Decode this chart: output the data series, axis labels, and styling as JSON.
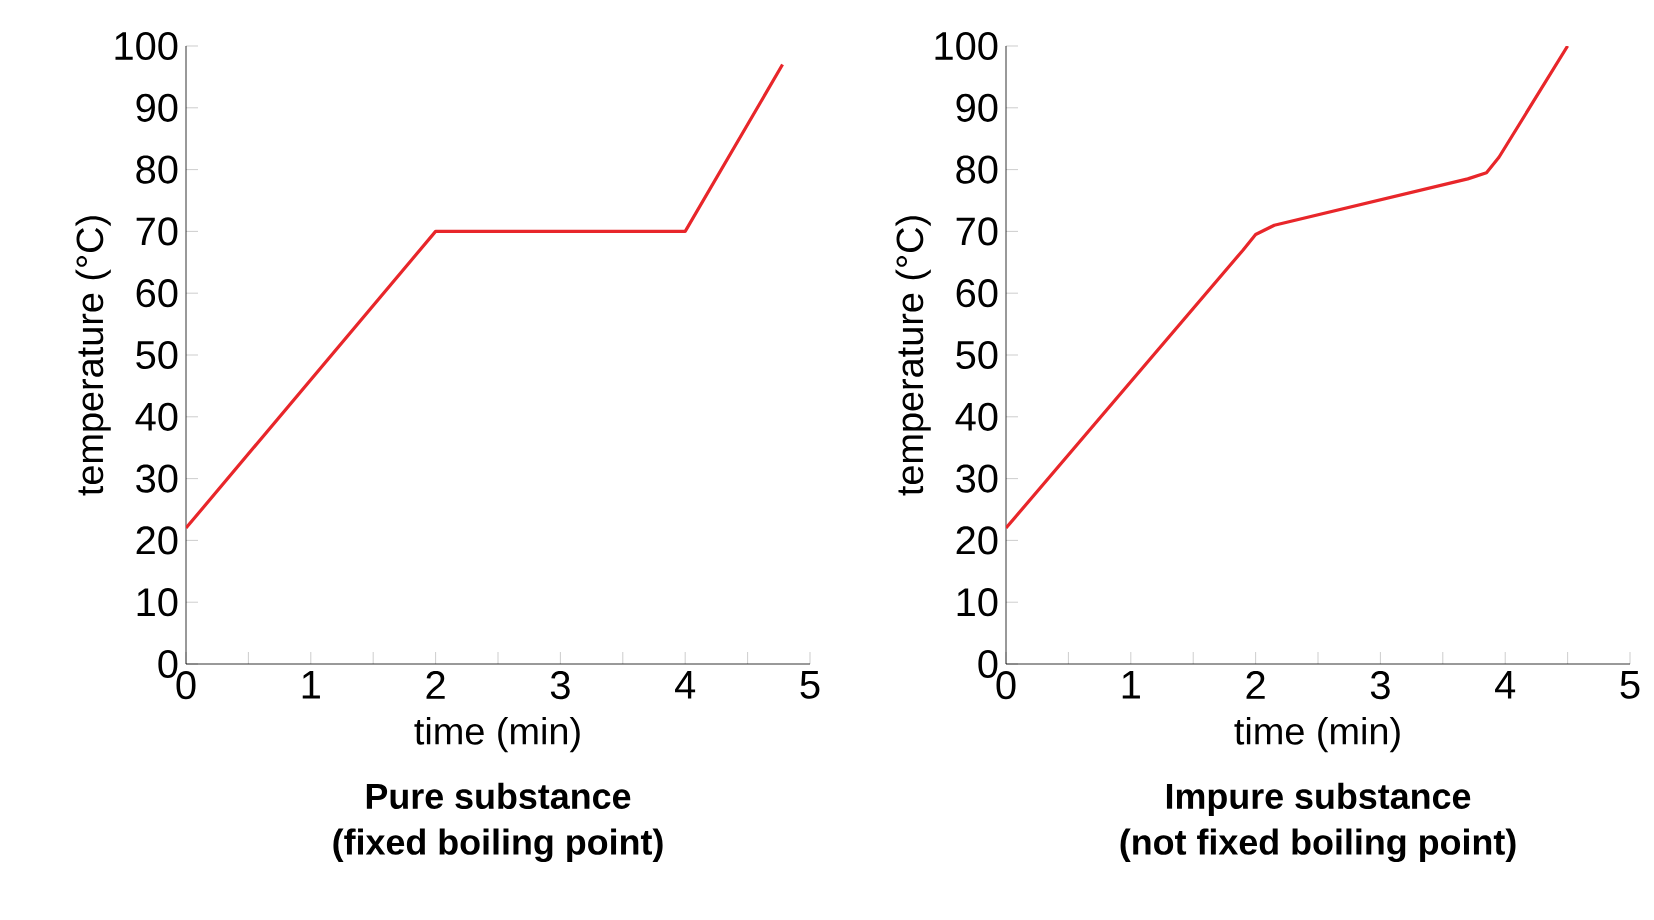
{
  "chart_data": [
    {
      "type": "line",
      "title": "Pure substance",
      "subtitle": "(fixed boiling point)",
      "xlabel": "time (min)",
      "ylabel": "temperature (°C)",
      "x": [
        0,
        2,
        4,
        4.78
      ],
      "series": [
        {
          "color": "#e8262a",
          "values": [
            22,
            70,
            70,
            97
          ]
        }
      ],
      "xlim": [
        0,
        5
      ],
      "ylim": [
        0,
        100
      ],
      "xticks": [
        0,
        {
          "value": 0.5,
          "label": null
        },
        1,
        {
          "value": 1.5,
          "label": null
        },
        2,
        {
          "value": 2.5,
          "label": null
        },
        3,
        {
          "value": 3.5,
          "label": null
        },
        4,
        {
          "value": 4.5,
          "label": null
        },
        5
      ],
      "yticks": [
        0,
        10,
        20,
        30,
        40,
        50,
        60,
        70,
        80,
        90,
        100
      ]
    },
    {
      "type": "line",
      "title": "Impure substance",
      "subtitle": "(not fixed boiling point)",
      "xlabel": "time (min)",
      "ylabel": "temperature (°C)",
      "x": [
        0,
        1.9,
        2,
        2.15,
        3.7,
        3.85,
        3.95,
        4.5
      ],
      "series": [
        {
          "color": "#e8262a",
          "values": [
            22,
            67,
            69.5,
            71,
            78.5,
            79.5,
            82,
            100
          ]
        }
      ],
      "xlim": [
        0,
        5
      ],
      "ylim": [
        0,
        100
      ],
      "xticks": [
        0,
        {
          "value": 0.5,
          "label": null
        },
        1,
        {
          "value": 1.5,
          "label": null
        },
        2,
        {
          "value": 2.5,
          "label": null
        },
        3,
        {
          "value": 3.5,
          "label": null
        },
        4,
        {
          "value": 4.5,
          "label": null
        },
        5
      ],
      "yticks": [
        0,
        10,
        20,
        30,
        40,
        50,
        60,
        70,
        80,
        90,
        100
      ]
    }
  ]
}
